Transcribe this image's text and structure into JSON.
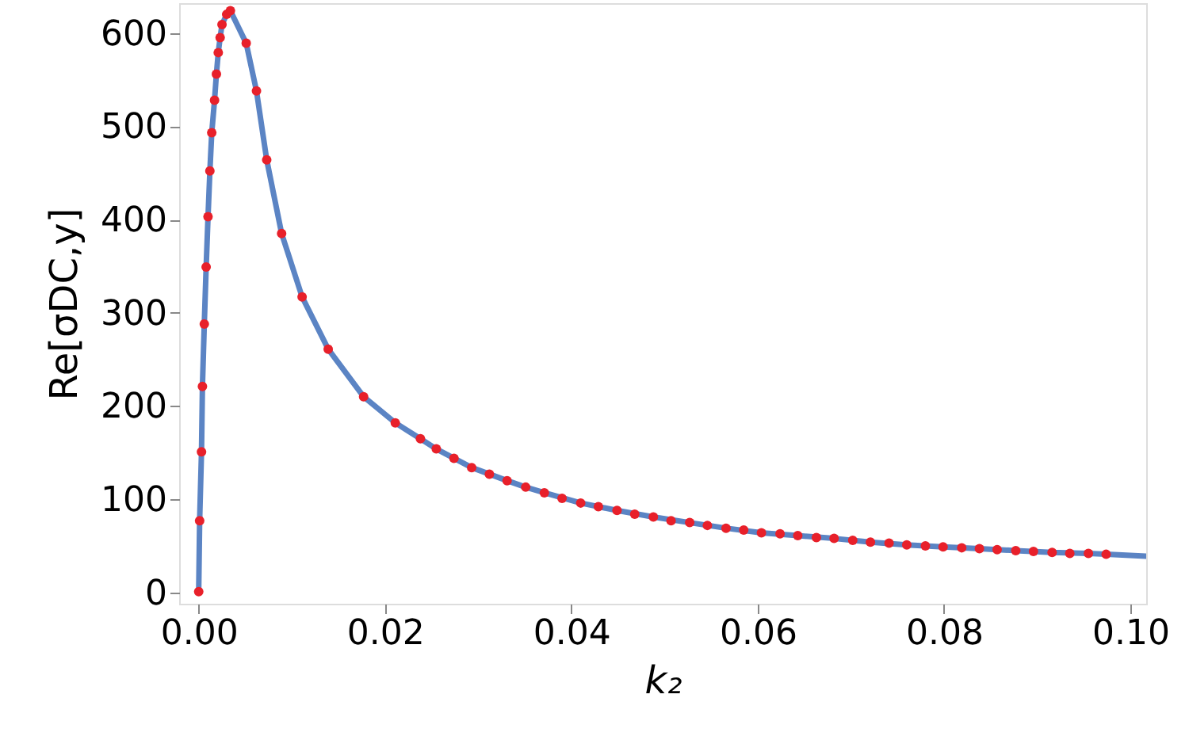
{
  "chart_data": {
    "type": "line",
    "xlabel": "k₂",
    "ylabel": "Re[σDC,y]",
    "xlim": [
      -0.0021,
      0.1017
    ],
    "ylim": [
      -12,
      632
    ],
    "xticks": [
      {
        "value": 0,
        "label": "0.00"
      },
      {
        "value": 0.02,
        "label": "0.02"
      },
      {
        "value": 0.04,
        "label": "0.04"
      },
      {
        "value": 0.06,
        "label": "0.06"
      },
      {
        "value": 0.08,
        "label": "0.08"
      },
      {
        "value": 0.1,
        "label": "0.10"
      }
    ],
    "yticks": [
      0,
      100,
      200,
      300,
      400,
      500,
      600
    ],
    "grid": false,
    "series": [
      {
        "color": "#5b84c4",
        "line_style": "solid",
        "marker": "none",
        "x": [
          0,
          0.0001,
          0.0003,
          0.0004,
          0.0006,
          0.0008,
          0.001,
          0.0012,
          0.0014,
          0.0017,
          0.0019,
          0.0021,
          0.0023,
          0.0025,
          0.003,
          0.0034,
          0.0051,
          0.0062,
          0.0073,
          0.0089,
          0.0111,
          0.0139,
          0.0177,
          0.0211,
          0.0238,
          0.0255,
          0.0274,
          0.0293,
          0.0312,
          0.0331,
          0.0351,
          0.0371,
          0.041,
          0.0449,
          0.0488,
          0.0527,
          0.0566,
          0.0604,
          0.0643,
          0.0682,
          0.0721,
          0.076,
          0.0799,
          0.0838,
          0.0877,
          0.0916,
          0.0955,
          0.0974,
          0.1017
        ],
        "values": [
          1,
          77,
          151,
          221,
          288,
          349,
          403,
          452,
          493,
          528,
          556,
          579,
          595,
          609,
          620,
          624,
          589,
          538,
          464,
          385,
          317,
          261,
          210,
          182,
          165,
          154,
          144,
          134,
          127,
          120,
          113,
          107,
          96,
          88,
          81,
          75,
          69,
          64,
          61,
          58,
          54,
          51,
          49,
          47,
          45,
          43,
          42,
          41,
          39
        ]
      },
      {
        "type": "scatter",
        "color": "#e8202a",
        "marker": "circle",
        "x": [
          0,
          0.0001,
          0.0003,
          0.0004,
          0.0006,
          0.0008,
          0.001,
          0.0012,
          0.0014,
          0.0017,
          0.0019,
          0.0021,
          0.0023,
          0.0025,
          0.003,
          0.0034,
          0.0051,
          0.0062,
          0.0073,
          0.0089,
          0.0111,
          0.0139,
          0.0177,
          0.0211,
          0.0238,
          0.0255,
          0.0274,
          0.0293,
          0.0312,
          0.0331,
          0.0351,
          0.0371,
          0.039,
          0.041,
          0.0429,
          0.0449,
          0.0468,
          0.0488,
          0.0507,
          0.0527,
          0.0546,
          0.0566,
          0.0585,
          0.0604,
          0.0624,
          0.0643,
          0.0663,
          0.0682,
          0.0702,
          0.0721,
          0.0741,
          0.076,
          0.078,
          0.0799,
          0.0819,
          0.0838,
          0.0857,
          0.0877,
          0.0896,
          0.0916,
          0.0935,
          0.0955,
          0.0974
        ],
        "values": [
          1,
          77,
          151,
          221,
          288,
          349,
          403,
          452,
          493,
          528,
          556,
          579,
          595,
          609,
          620,
          624,
          589,
          538,
          464,
          385,
          317,
          261,
          210,
          182,
          165,
          154,
          144,
          134,
          127,
          120,
          113,
          107,
          101,
          96,
          92,
          88,
          84,
          81,
          77,
          75,
          72,
          69,
          67,
          64,
          63,
          61,
          59,
          58,
          56,
          54,
          53,
          51,
          50,
          49,
          48,
          47,
          46,
          45,
          44,
          43,
          42,
          42,
          41
        ]
      }
    ]
  }
}
